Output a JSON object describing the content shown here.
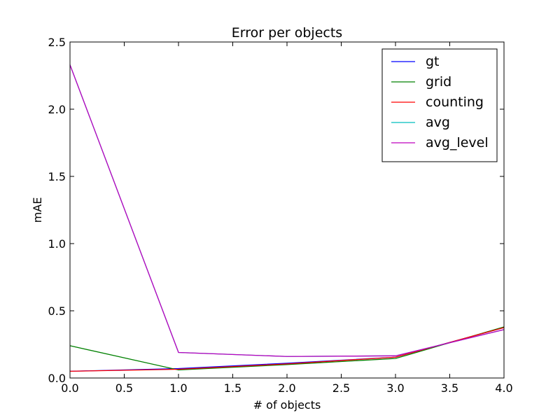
{
  "chart_data": {
    "type": "line",
    "title": "Error per objects",
    "xlabel": "# of objects",
    "ylabel": "mAE",
    "xlim": [
      0.0,
      4.0
    ],
    "ylim": [
      0.0,
      2.5
    ],
    "xticks": [
      "0.0",
      "0.5",
      "1.0",
      "1.5",
      "2.0",
      "2.5",
      "3.0",
      "3.5",
      "4.0"
    ],
    "yticks": [
      "0.0",
      "0.5",
      "1.0",
      "1.5",
      "2.0",
      "2.5"
    ],
    "grid": false,
    "legend_position": "top-right",
    "x": [
      0,
      1,
      2,
      3,
      4
    ],
    "series": [
      {
        "name": "gt",
        "color": "#0000ff",
        "values": [
          0.05,
          0.07,
          0.11,
          0.155,
          0.375
        ]
      },
      {
        "name": "grid",
        "color": "#008000",
        "values": [
          0.24,
          0.06,
          0.1,
          0.145,
          0.38
        ]
      },
      {
        "name": "counting",
        "color": "#ff0000",
        "values": [
          0.05,
          0.065,
          0.105,
          0.155,
          0.375
        ]
      },
      {
        "name": "avg",
        "color": "#00bfbf",
        "values": [
          2.33,
          0.19,
          0.16,
          0.165,
          0.36
        ]
      },
      {
        "name": "avg_level",
        "color": "#bf00bf",
        "values": [
          2.33,
          0.19,
          0.16,
          0.165,
          0.36
        ]
      }
    ]
  }
}
